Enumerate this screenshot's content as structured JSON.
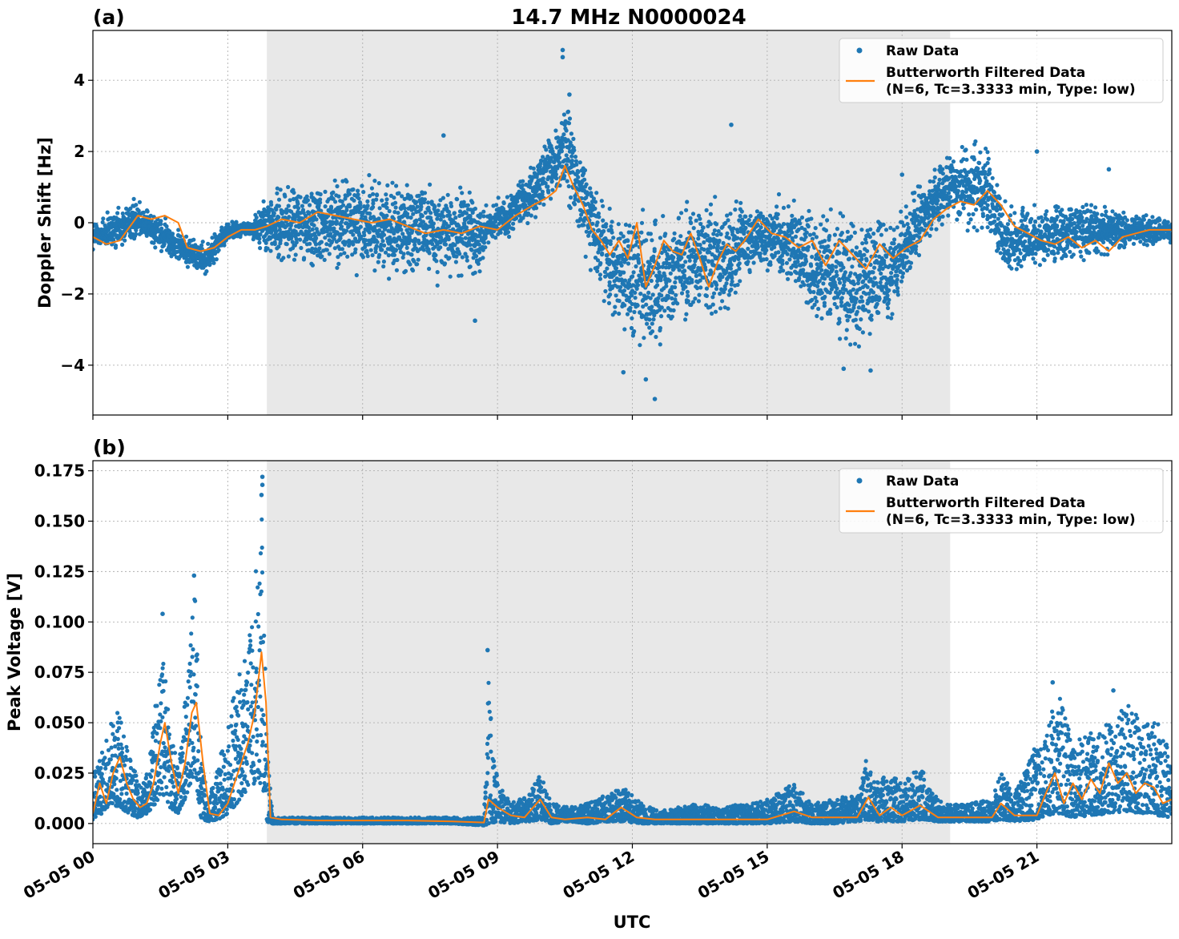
{
  "figure": {
    "title": "14.7 MHz N0000024"
  },
  "chart_data": [
    {
      "type": "scatter",
      "panel_label": "(a)",
      "ylabel": "Doppler Shift [Hz]",
      "xlabel": "",
      "xlim_hours": [
        0,
        24
      ],
      "ylim": [
        -5.4,
        5.4
      ],
      "yticks": [
        -4,
        -2,
        0,
        2,
        4
      ],
      "ytick_labels": [
        "−4",
        "−2",
        "0",
        "2",
        "4"
      ],
      "grid": true,
      "legend_position": "top-right",
      "legend": {
        "raw": "Raw Data",
        "filtered_line1": "Butterworth Filtered Data",
        "filtered_line2": "(N=6, Tc=3.3333 min, Type: low)"
      },
      "shaded_region_hours": [
        3.87,
        19.07
      ],
      "series": [
        {
          "name": "Raw Data",
          "kind": "scatter",
          "color": "#1f77b4",
          "envelope": {
            "x_hours": [
              0,
              0.5,
              1.0,
              1.5,
              2.0,
              2.5,
              3.0,
              3.5,
              3.87,
              4.5,
              5.5,
              6.5,
              7.5,
              8.5,
              8.8,
              9.3,
              9.8,
              10.2,
              10.5,
              10.8,
              11.2,
              11.6,
              12.0,
              12.5,
              13.0,
              13.5,
              14.0,
              14.5,
              15.0,
              15.5,
              16.0,
              16.5,
              17.0,
              17.5,
              18.0,
              18.5,
              19.07,
              19.5,
              19.9,
              20.3,
              21.0,
              22.0,
              23.0,
              24.0
            ],
            "upper": [
              0.3,
              0.5,
              0.9,
              0.3,
              -0.2,
              -0.4,
              0.1,
              0.1,
              1.0,
              1.4,
              1.6,
              1.5,
              1.4,
              1.2,
              0.5,
              1.0,
              1.8,
              2.8,
              3.9,
              2.5,
              1.2,
              0.8,
              0.6,
              0.8,
              1.0,
              0.9,
              1.1,
              1.0,
              0.9,
              1.0,
              0.9,
              0.8,
              0.7,
              0.6,
              0.8,
              1.4,
              2.2,
              2.6,
              2.4,
              0.6,
              0.6,
              0.8,
              0.4,
              0.2
            ],
            "lower": [
              -1.0,
              -1.0,
              -0.6,
              -0.9,
              -1.3,
              -1.6,
              -0.6,
              -0.4,
              -1.2,
              -1.5,
              -1.6,
              -1.7,
              -1.8,
              -2.0,
              -0.8,
              -0.4,
              -0.1,
              0.2,
              0.4,
              -0.6,
              -2.0,
              -3.0,
              -3.8,
              -4.1,
              -3.2,
              -3.0,
              -3.6,
              -1.8,
              -1.6,
              -2.0,
              -3.3,
              -3.8,
              -4.0,
              -3.6,
              -2.5,
              -0.8,
              0.0,
              -0.5,
              -0.8,
              -1.7,
              -1.4,
              -1.2,
              -0.9,
              -0.6
            ]
          },
          "outliers": [
            [
              10.45,
              4.85
            ],
            [
              10.45,
              4.65
            ],
            [
              12.5,
              -4.95
            ],
            [
              12.3,
              -4.4
            ],
            [
              14.2,
              2.75
            ],
            [
              7.8,
              2.45
            ],
            [
              21.0,
              2.0
            ],
            [
              22.6,
              1.5
            ],
            [
              8.5,
              -2.75
            ],
            [
              11.8,
              -4.2
            ],
            [
              16.7,
              -4.1
            ],
            [
              17.3,
              -4.15
            ],
            [
              10.6,
              3.6
            ],
            [
              18.0,
              1.35
            ]
          ]
        },
        {
          "name": "Butterworth Filtered Data",
          "kind": "line",
          "color": "#ff7f0e",
          "x_hours": [
            0,
            0.3,
            0.6,
            1.0,
            1.3,
            1.6,
            1.9,
            2.1,
            2.4,
            2.7,
            3.0,
            3.3,
            3.6,
            3.87,
            4.2,
            4.6,
            5.0,
            5.4,
            5.8,
            6.2,
            6.6,
            7.0,
            7.4,
            7.8,
            8.2,
            8.6,
            9.0,
            9.4,
            9.8,
            10.1,
            10.3,
            10.5,
            10.7,
            10.9,
            11.1,
            11.3,
            11.5,
            11.7,
            11.9,
            12.1,
            12.3,
            12.5,
            12.7,
            12.9,
            13.1,
            13.3,
            13.5,
            13.7,
            13.9,
            14.1,
            14.3,
            14.5,
            14.8,
            15.1,
            15.4,
            15.7,
            16.0,
            16.3,
            16.6,
            16.9,
            17.2,
            17.5,
            17.8,
            18.1,
            18.4,
            18.7,
            19.0,
            19.3,
            19.6,
            19.9,
            20.2,
            20.5,
            20.8,
            21.1,
            21.4,
            21.7,
            22.0,
            22.3,
            22.6,
            22.9,
            23.2,
            23.5,
            23.8,
            24.0
          ],
          "y": [
            -0.4,
            -0.6,
            -0.5,
            0.2,
            0.1,
            0.2,
            0.0,
            -0.7,
            -0.8,
            -0.7,
            -0.4,
            -0.2,
            -0.2,
            -0.1,
            0.1,
            0.0,
            0.3,
            0.2,
            0.1,
            0.0,
            0.1,
            -0.1,
            -0.3,
            -0.2,
            -0.3,
            -0.1,
            -0.2,
            0.2,
            0.5,
            0.7,
            0.9,
            1.6,
            1.0,
            0.5,
            -0.2,
            -0.5,
            -0.9,
            -0.5,
            -1.0,
            0.0,
            -1.8,
            -1.2,
            -0.5,
            -0.8,
            -0.9,
            -0.3,
            -1.0,
            -1.8,
            -1.1,
            -0.6,
            -0.8,
            -0.5,
            0.1,
            -0.3,
            -0.4,
            -0.7,
            -0.5,
            -1.2,
            -0.5,
            -0.9,
            -1.3,
            -0.6,
            -1.0,
            -0.7,
            -0.5,
            0.1,
            0.4,
            0.6,
            0.5,
            0.9,
            0.5,
            -0.1,
            -0.3,
            -0.5,
            -0.6,
            -0.4,
            -0.7,
            -0.5,
            -0.8,
            -0.4,
            -0.3,
            -0.2,
            -0.2,
            -0.2
          ]
        }
      ]
    },
    {
      "type": "scatter",
      "panel_label": "(b)",
      "ylabel": "Peak Voltage [V]",
      "xlabel": "UTC",
      "xlim_hours": [
        0,
        24
      ],
      "ylim": [
        -0.01,
        0.18
      ],
      "yticks": [
        0.0,
        0.025,
        0.05,
        0.075,
        0.1,
        0.125,
        0.15,
        0.175
      ],
      "ytick_labels": [
        "0.000",
        "0.025",
        "0.050",
        "0.075",
        "0.100",
        "0.125",
        "0.150",
        "0.175"
      ],
      "xtick_hours": [
        0,
        3,
        6,
        9,
        12,
        15,
        18,
        21
      ],
      "xtick_labels": [
        "05-05 00",
        "05-05 03",
        "05-05 06",
        "05-05 09",
        "05-05 12",
        "05-05 15",
        "05-05 18",
        "05-05 21"
      ],
      "grid": true,
      "legend_position": "top-right",
      "legend": {
        "raw": "Raw Data",
        "filtered_line1": "Butterworth Filtered Data",
        "filtered_line2": "(N=6, Tc=3.3333 min, Type: low)"
      },
      "shaded_region_hours": [
        3.87,
        19.07
      ],
      "series": [
        {
          "name": "Raw Data",
          "kind": "scatter",
          "color": "#1f77b4",
          "envelope": {
            "x_hours": [
              0,
              0.2,
              0.4,
              0.6,
              0.8,
              1.0,
              1.2,
              1.4,
              1.55,
              1.7,
              1.9,
              2.1,
              2.25,
              2.4,
              2.55,
              2.8,
              3.0,
              3.2,
              3.4,
              3.6,
              3.75,
              3.87,
              4.0,
              5.0,
              6.0,
              7.0,
              8.0,
              8.7,
              8.8,
              9.0,
              9.3,
              9.7,
              9.95,
              10.2,
              10.6,
              11.0,
              11.5,
              11.8,
              12.2,
              12.6,
              13.0,
              13.5,
              14.0,
              14.5,
              15.0,
              15.6,
              16.0,
              16.5,
              17.0,
              17.2,
              17.4,
              17.7,
              18.0,
              18.4,
              18.8,
              19.07,
              19.5,
              20.0,
              20.2,
              20.5,
              21.0,
              21.2,
              21.5,
              21.8,
              22.2,
              22.6,
              23.0,
              23.4,
              23.7,
              24.0
            ],
            "upper": [
              0.025,
              0.035,
              0.05,
              0.06,
              0.04,
              0.02,
              0.025,
              0.06,
              0.09,
              0.05,
              0.03,
              0.07,
              0.12,
              0.04,
              0.01,
              0.03,
              0.05,
              0.07,
              0.09,
              0.12,
              0.16,
              0.04,
              0.003,
              0.003,
              0.003,
              0.003,
              0.003,
              0.003,
              0.085,
              0.02,
              0.01,
              0.015,
              0.025,
              0.01,
              0.008,
              0.01,
              0.015,
              0.018,
              0.01,
              0.006,
              0.008,
              0.01,
              0.008,
              0.01,
              0.012,
              0.02,
              0.01,
              0.012,
              0.015,
              0.032,
              0.02,
              0.025,
              0.02,
              0.028,
              0.012,
              0.01,
              0.01,
              0.012,
              0.025,
              0.015,
              0.04,
              0.05,
              0.065,
              0.04,
              0.045,
              0.05,
              0.06,
              0.05,
              0.05,
              0.035
            ],
            "lower": [
              0.002,
              0.005,
              0.01,
              0.008,
              0.005,
              0.003,
              0.005,
              0.01,
              0.015,
              0.008,
              0.005,
              0.015,
              0.025,
              0.003,
              0.001,
              0.002,
              0.005,
              0.01,
              0.015,
              0.02,
              0.02,
              0.001,
              0.0,
              0.0,
              0.0,
              0.0,
              0.0,
              -0.001,
              0.0,
              0.001,
              0.0,
              0.001,
              0.002,
              0.0,
              0.001,
              0.0,
              0.001,
              0.001,
              0.0,
              0.0,
              0.0,
              0.0,
              0.0,
              0.0,
              0.0,
              0.001,
              0.0,
              0.0,
              0.001,
              0.002,
              0.001,
              0.001,
              0.001,
              0.002,
              0.001,
              0.001,
              0.001,
              0.001,
              0.002,
              0.001,
              0.002,
              0.004,
              0.005,
              0.003,
              0.004,
              0.005,
              0.006,
              0.005,
              0.004,
              0.003
            ]
          },
          "outliers": [
            [
              3.77,
              0.172
            ],
            [
              3.77,
              0.168
            ],
            [
              3.75,
              0.163
            ],
            [
              2.25,
              0.123
            ],
            [
              1.55,
              0.104
            ],
            [
              8.78,
              0.086
            ],
            [
              21.35,
              0.07
            ],
            [
              22.7,
              0.066
            ]
          ]
        },
        {
          "name": "Butterworth Filtered Data",
          "kind": "line",
          "color": "#ff7f0e",
          "x_hours": [
            0,
            0.15,
            0.3,
            0.45,
            0.6,
            0.75,
            0.9,
            1.05,
            1.2,
            1.35,
            1.5,
            1.6,
            1.75,
            1.9,
            2.05,
            2.2,
            2.3,
            2.45,
            2.6,
            2.8,
            3.0,
            3.15,
            3.3,
            3.45,
            3.6,
            3.75,
            3.85,
            3.95,
            4.2,
            5.0,
            6.0,
            7.0,
            8.0,
            8.7,
            8.8,
            9.0,
            9.3,
            9.6,
            9.95,
            10.2,
            10.5,
            11.0,
            11.4,
            11.75,
            12.1,
            12.5,
            13.0,
            13.5,
            14.0,
            14.5,
            15.0,
            15.6,
            16.0,
            16.5,
            17.0,
            17.25,
            17.5,
            17.75,
            18.0,
            18.4,
            18.8,
            19.07,
            19.5,
            20.0,
            20.2,
            20.5,
            21.0,
            21.2,
            21.4,
            21.6,
            21.8,
            22.0,
            22.2,
            22.4,
            22.6,
            22.8,
            23.0,
            23.2,
            23.4,
            23.6,
            23.8,
            24.0
          ],
          "y": [
            0.005,
            0.02,
            0.01,
            0.025,
            0.033,
            0.02,
            0.012,
            0.008,
            0.01,
            0.02,
            0.04,
            0.05,
            0.03,
            0.015,
            0.03,
            0.055,
            0.06,
            0.03,
            0.005,
            0.004,
            0.01,
            0.02,
            0.03,
            0.04,
            0.055,
            0.085,
            0.06,
            0.003,
            0.002,
            0.0015,
            0.0015,
            0.0015,
            0.001,
            0.0005,
            0.012,
            0.008,
            0.004,
            0.003,
            0.012,
            0.003,
            0.002,
            0.003,
            0.002,
            0.008,
            0.003,
            0.002,
            0.002,
            0.002,
            0.002,
            0.002,
            0.002,
            0.006,
            0.003,
            0.003,
            0.003,
            0.013,
            0.004,
            0.008,
            0.004,
            0.009,
            0.003,
            0.003,
            0.003,
            0.003,
            0.01,
            0.004,
            0.004,
            0.015,
            0.025,
            0.01,
            0.02,
            0.012,
            0.022,
            0.015,
            0.03,
            0.02,
            0.025,
            0.015,
            0.02,
            0.018,
            0.01,
            0.012
          ]
        }
      ]
    }
  ]
}
